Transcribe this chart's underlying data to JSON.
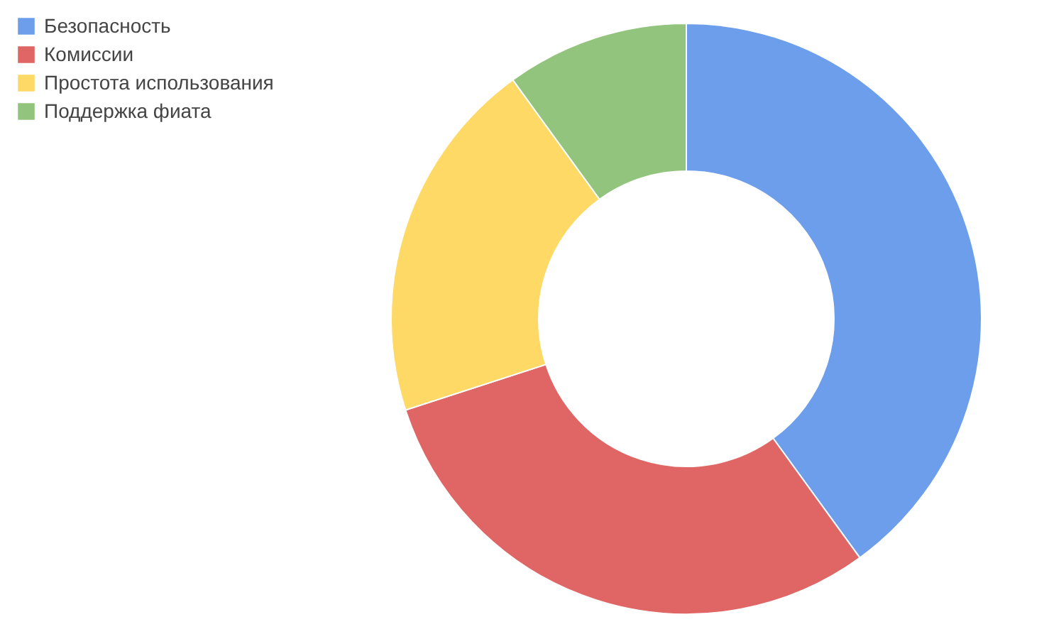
{
  "chart_data": {
    "type": "donut",
    "categories": [
      "Безопасность",
      "Комиссии",
      "Простота использования",
      "Поддержка фиата"
    ],
    "values": [
      40,
      30,
      20,
      10
    ],
    "colors": [
      "#6d9eeb",
      "#e06666",
      "#ffd966",
      "#93c47d"
    ],
    "legend": "top left"
  }
}
